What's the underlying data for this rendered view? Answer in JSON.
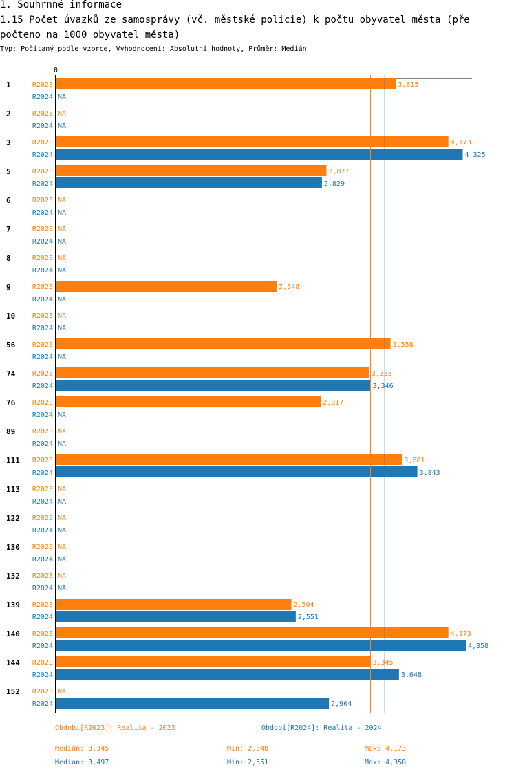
{
  "section_title": "1. Souhrnné informace",
  "title_line1": "1.15 Počet úvazků ze samosprávy (vč. městské policie) k počtu obyvatel města (pře",
  "title_line2": "počteno na 1000 obyvatel města)",
  "subtitle": "Typ: Počítaný podle vzorce, Vyhodnocení: Absolutní hodnoty, Průměr: Medián",
  "colors": {
    "r2023": "#ff7f0e",
    "r2024": "#1f77b4",
    "axis": "#000000"
  },
  "chart_data": {
    "type": "bar",
    "orientation": "horizontal",
    "x_axis_zero_label": "0",
    "xlim": [
      0,
      4.6
    ],
    "missing_label": "NA",
    "series_names": [
      "R2023",
      "R2024"
    ],
    "categories": [
      "1",
      "2",
      "3",
      "5",
      "6",
      "7",
      "8",
      "9",
      "10",
      "56",
      "74",
      "76",
      "89",
      "111",
      "113",
      "122",
      "130",
      "132",
      "139",
      "140",
      "144",
      "152"
    ],
    "values": {
      "R2023": [
        3.615,
        null,
        4.173,
        2.877,
        null,
        null,
        null,
        2.348,
        null,
        3.558,
        3.333,
        2.817,
        null,
        3.681,
        null,
        null,
        null,
        null,
        2.504,
        4.173,
        3.345,
        null
      ],
      "R2024": [
        null,
        null,
        4.325,
        2.829,
        null,
        null,
        null,
        null,
        null,
        null,
        3.346,
        null,
        null,
        3.843,
        null,
        null,
        null,
        null,
        2.551,
        4.358,
        3.648,
        2.904
      ]
    },
    "value_labels": {
      "R2023": [
        "3,615",
        "NA",
        "4,173",
        "2,877",
        "NA",
        "NA",
        "NA",
        "2,348",
        "NA",
        "3,558",
        "3,333",
        "2,817",
        "NA",
        "3,681",
        "NA",
        "NA",
        "NA",
        "NA",
        "2,504",
        "4,173",
        "3,345",
        "NA"
      ],
      "R2024": [
        "NA",
        "NA",
        "4,325",
        "2,829",
        "NA",
        "NA",
        "NA",
        "NA",
        "NA",
        "NA",
        "3,346",
        "NA",
        "NA",
        "3,843",
        "NA",
        "NA",
        "NA",
        "NA",
        "2,551",
        "4,358",
        "3,648",
        "2,904"
      ]
    },
    "median_lines": {
      "R2023": 3.345,
      "R2024": 3.497
    }
  },
  "legend": {
    "r2023": {
      "period": "Období[R2023]: Realita - 2023",
      "median": "Medián: 3,345",
      "min": "Min: 2,348",
      "max": "Max: 4,173"
    },
    "r2024": {
      "period": "Období[R2024]: Realita - 2024",
      "median": "Medián: 3,497",
      "min": "Min: 2,551",
      "max": "Max: 4,358"
    }
  }
}
